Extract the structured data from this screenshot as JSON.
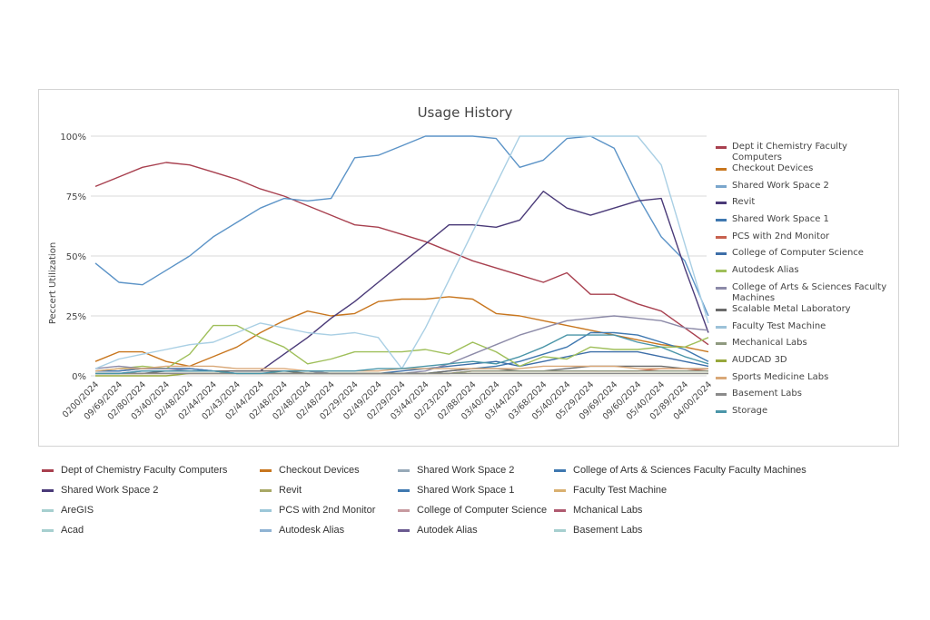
{
  "chart_data": {
    "type": "line",
    "title": "Usage History",
    "xlabel": "",
    "ylabel": "Peccert Utilization",
    "ylim": [
      0,
      100
    ],
    "yticks": [
      "0%",
      "25%",
      "50%",
      "75%",
      "100%"
    ],
    "grid": true,
    "legend_position": "right",
    "categories": [
      "0200/2024",
      "09/69/2024",
      "02/80/2024",
      "03/40/2024",
      "02/48/2024",
      "02/44/2024",
      "02/43/2024",
      "02/44/2024",
      "02/48/2024",
      "02/48/2024",
      "02/48/2024",
      "02/29/2024",
      "02/49/2024",
      "02/29/2024",
      "03/44/2024",
      "02/23/2024",
      "02/88/2024",
      "03/40/2024",
      "03/44/2024",
      "03/68/2024",
      "05/40/2024",
      "05/29/2024",
      "09/69/2024",
      "09/60/2024",
      "05/40/2024",
      "02/89/2024",
      "04/00/2024"
    ],
    "series": [
      {
        "name": "Dept it Chemistry Faculty Computers",
        "color": "#a8404f",
        "values": [
          79,
          83,
          87,
          89,
          88,
          85,
          82,
          78,
          75,
          71,
          67,
          63,
          62,
          59,
          56,
          52,
          48,
          45,
          42,
          39,
          43,
          34,
          34,
          30,
          27,
          20,
          13
        ]
      },
      {
        "name": "Checkout Devices",
        "color": "#c8761e",
        "values": [
          6,
          10,
          10,
          6,
          4,
          8,
          12,
          18,
          23,
          27,
          25,
          26,
          31,
          32,
          32,
          33,
          32,
          26,
          25,
          23,
          21,
          19,
          17,
          15,
          13,
          12,
          10
        ]
      },
      {
        "name": "Shared Work Space 2",
        "color": "#5b93c7",
        "values": [
          47,
          39,
          38,
          44,
          50,
          58,
          64,
          70,
          74,
          73,
          74,
          91,
          92,
          96,
          100,
          100,
          100,
          99,
          87,
          90,
          99,
          100,
          95,
          75,
          58,
          48,
          25
        ]
      },
      {
        "name": "Revit",
        "color": "#4a3a78",
        "values": [
          2,
          2,
          3,
          3,
          3,
          2,
          2,
          2,
          9,
          16,
          24,
          31,
          39,
          47,
          55,
          63,
          63,
          62,
          65,
          77,
          70,
          67,
          70,
          73,
          74,
          45,
          18
        ]
      },
      {
        "name": "Shared Work Space 1",
        "color": "#3f78b0",
        "values": [
          2,
          2,
          3,
          3,
          3,
          2,
          2,
          2,
          2,
          2,
          1,
          1,
          1,
          1,
          1,
          2,
          3,
          4,
          6,
          9,
          12,
          18,
          18,
          17,
          14,
          11,
          6
        ]
      },
      {
        "name": "PCS with 2nd Monitor",
        "color": "#c7604e",
        "values": [
          1,
          1,
          1,
          1,
          1,
          1,
          1,
          1,
          1,
          1,
          1,
          1,
          1,
          1,
          1,
          1,
          2,
          2,
          2,
          2,
          2,
          2,
          2,
          2,
          3,
          3,
          2
        ]
      },
      {
        "name": "College of Computer Science",
        "color": "#3d6ea8",
        "values": [
          1,
          1,
          2,
          2,
          2,
          2,
          1,
          1,
          1,
          1,
          1,
          1,
          1,
          2,
          3,
          4,
          5,
          6,
          4,
          6,
          8,
          10,
          10,
          10,
          8,
          6,
          4
        ]
      },
      {
        "name": "Autodesk Alias",
        "color": "#9fbf5a",
        "values": [
          2,
          3,
          4,
          3,
          9,
          21,
          21,
          16,
          12,
          5,
          7,
          10,
          10,
          10,
          11,
          9,
          14,
          10,
          4,
          8,
          7,
          12,
          11,
          11,
          12,
          12,
          16
        ]
      },
      {
        "name": "College of Arts & Sciences Faculty Machines",
        "color": "#8c8aa8",
        "values": [
          3,
          4,
          3,
          3,
          2,
          2,
          2,
          2,
          2,
          2,
          1,
          1,
          1,
          1,
          2,
          5,
          9,
          13,
          17,
          20,
          23,
          24,
          25,
          24,
          23,
          20,
          19
        ]
      },
      {
        "name": "Scalable Metal Laboratory",
        "color": "#6b6b6b",
        "values": [
          1,
          1,
          1,
          2,
          2,
          2,
          2,
          2,
          2,
          1,
          1,
          1,
          1,
          1,
          1,
          2,
          3,
          3,
          2,
          2,
          3,
          4,
          4,
          4,
          4,
          3,
          3
        ]
      },
      {
        "name": "Faculty Test Machine",
        "color": "#a9cfe4",
        "values": [
          3,
          7,
          9,
          11,
          13,
          14,
          18,
          22,
          20,
          18,
          17,
          18,
          16,
          3,
          20,
          40,
          60,
          80,
          100,
          100,
          100,
          100,
          100,
          100,
          88,
          55,
          22
        ]
      },
      {
        "name": "Mechanical Labs",
        "color": "#8f9a80",
        "values": [
          1,
          1,
          1,
          1,
          1,
          1,
          1,
          1,
          1,
          1,
          1,
          1,
          1,
          1,
          1,
          1,
          2,
          2,
          2,
          2,
          2,
          2,
          2,
          2,
          2,
          2,
          2
        ]
      },
      {
        "name": "AUDCAD 3D",
        "color": "#97a83c",
        "values": [
          0,
          0,
          0,
          0,
          1,
          1,
          1,
          1,
          1,
          1,
          1,
          1,
          1,
          1,
          1,
          1,
          1,
          1,
          1,
          1,
          1,
          1,
          1,
          1,
          1,
          1,
          1
        ]
      },
      {
        "name": "Sports Medicine Labs",
        "color": "#d9a878",
        "values": [
          2,
          3,
          3,
          4,
          4,
          4,
          3,
          3,
          3,
          2,
          2,
          2,
          2,
          3,
          3,
          3,
          3,
          3,
          3,
          4,
          4,
          4,
          4,
          3,
          3,
          3,
          3
        ]
      },
      {
        "name": "Basement Labs",
        "color": "#8a8a8a",
        "values": [
          1,
          1,
          1,
          1,
          1,
          1,
          1,
          1,
          1,
          1,
          1,
          1,
          1,
          1,
          1,
          1,
          1,
          1,
          1,
          1,
          1,
          1,
          1,
          1,
          1,
          1,
          1
        ]
      },
      {
        "name": "Storage",
        "color": "#4a95a8",
        "values": [
          1,
          1,
          2,
          2,
          2,
          2,
          1,
          1,
          2,
          2,
          2,
          2,
          3,
          3,
          4,
          5,
          6,
          5,
          8,
          12,
          17,
          17,
          17,
          14,
          12,
          8,
          5
        ]
      }
    ],
    "right_legend": [
      {
        "label": "Dept it Chemistry Faculty Computers",
        "color": "#a8404f"
      },
      {
        "label": "Checkout Devices",
        "color": "#c8761e"
      },
      {
        "label": "Shared Work Space 2",
        "color": "#7aa6cc"
      },
      {
        "label": "Revit",
        "color": "#4a3a78"
      },
      {
        "label": "Shared Work Space 1",
        "color": "#3f78b0"
      },
      {
        "label": "PCS with 2nd Monitor",
        "color": "#c7604e"
      },
      {
        "label": "College of Computer Science",
        "color": "#3d6ea8"
      },
      {
        "label": "Autodesk Alias",
        "color": "#9fbf5a"
      },
      {
        "label": "College of Arts & Sciences Faculty Machines",
        "color": "#8c8aa8"
      },
      {
        "label": "Scalable Metal Laboratory",
        "color": "#6b6b6b"
      },
      {
        "label": "Faculty Test Machine",
        "color": "#9cc2d8"
      },
      {
        "label": "Mechanical Labs",
        "color": "#8f9a80"
      },
      {
        "label": "AUDCAD 3D",
        "color": "#97a83c"
      },
      {
        "label": "Sports Medicine Labs",
        "color": "#d9a878"
      },
      {
        "label": "Basement Labs",
        "color": "#8a8a8a"
      },
      {
        "label": "Storage",
        "color": "#4a95a8"
      }
    ],
    "bottom_legend": [
      {
        "label": "Dept of Chemistry Faculty Computers",
        "color": "#a8404f"
      },
      {
        "label": "Shared Work Space 2",
        "color": "#4a3a78"
      },
      {
        "label": "AreGIS",
        "color": "#a6cfcf"
      },
      {
        "label": "Acad",
        "color": "#a6cfcf"
      },
      {
        "label": "Checkout Devices",
        "color": "#c8761e"
      },
      {
        "label": "Revit",
        "color": "#a8a866"
      },
      {
        "label": "PCS with 2nd Monitor",
        "color": "#9cc7d8"
      },
      {
        "label": "Autodesk Alias",
        "color": "#8fb3d3"
      },
      {
        "label": "Shared Work Space 2",
        "color": "#97a9b8"
      },
      {
        "label": "Shared Work Space 1",
        "color": "#3f78b0"
      },
      {
        "label": "College of Computer Science",
        "color": "#c79aa0"
      },
      {
        "label": "Autodek Alias",
        "color": "#6a5a90"
      },
      {
        "label": "College of Arts & Sciences Faculty Faculty Machines",
        "color": "#3f78b0"
      },
      {
        "label": "Faculty Test Machine",
        "color": "#d9b070"
      },
      {
        "label": "Mchanical Labs",
        "color": "#b05a70"
      },
      {
        "label": "Basement Labs",
        "color": "#a6cfcf"
      }
    ]
  }
}
